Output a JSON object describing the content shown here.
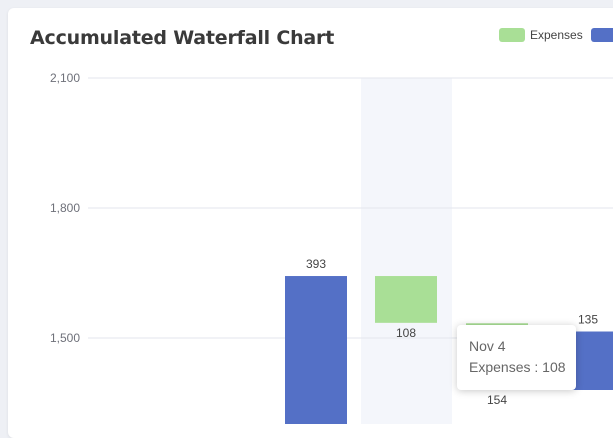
{
  "chart_data": {
    "type": "bar",
    "title": "Accumulated Waterfall Chart",
    "legend": {
      "position": "top-right",
      "entries": [
        "Expenses",
        ""
      ]
    },
    "colors": {
      "expenses": "#a9df96",
      "income": "#5470c6",
      "highlight": "#f4f6fb"
    },
    "y_axis": {
      "ticks": [
        "2,100",
        "1,800",
        "1,500"
      ],
      "tick_values": [
        2100,
        1800,
        1500
      ],
      "visible_range": [
        1200,
        2100
      ]
    },
    "highlighted_category": "Nov 4",
    "bars": [
      {
        "series": "income",
        "base": 1250,
        "value": 393,
        "label": "393"
      },
      {
        "series": "expenses",
        "base": 1535,
        "value": 108,
        "label": "108"
      },
      {
        "series": "expenses",
        "base": 1380,
        "value": 154,
        "label": "154"
      },
      {
        "series": "income",
        "base": 1380,
        "value": 135,
        "label": "135"
      }
    ]
  },
  "tooltip": {
    "title": "Nov 4",
    "line": "Expenses : 108"
  }
}
